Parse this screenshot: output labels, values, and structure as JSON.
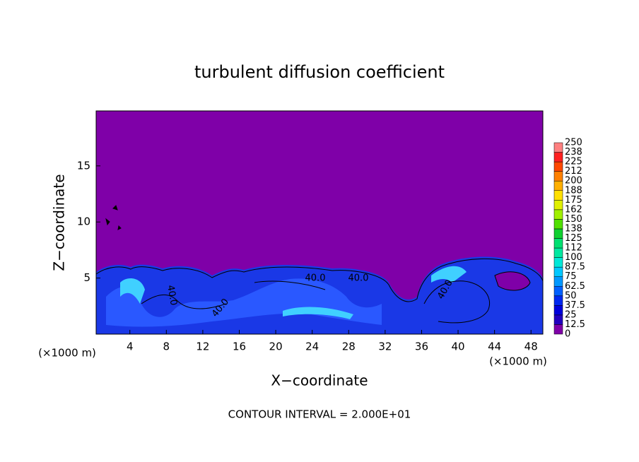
{
  "chart_data": {
    "type": "contour",
    "title": "turbulent diffusion coefficient",
    "xlabel": "X−coordinate",
    "ylabel": "Z−coordinate",
    "x_unit_labels": [
      "(×1000 m)",
      "(×1000 m)"
    ],
    "footer": "CONTOUR INTERVAL = 2.000E+01",
    "xlim": [
      0.3,
      49.3
    ],
    "ylim": [
      0,
      19.9
    ],
    "xticks": [
      4,
      8,
      12,
      16,
      20,
      24,
      28,
      32,
      36,
      40,
      44,
      48
    ],
    "yticks": [
      5,
      10,
      15
    ],
    "background_color": "#7f00a8",
    "contour_labels": [
      "40.0",
      "40.0",
      "40.0",
      "40.0",
      "40.0"
    ],
    "colorbar": {
      "levels": [
        0,
        12.5,
        25,
        37.5,
        50,
        62.5,
        75,
        87.5,
        100,
        {
          "value": 112.5,
          "label": "112"
        },
        125,
        {
          "value": 137.5,
          "label": "138"
        },
        150,
        {
          "value": 162.5,
          "label": "162"
        },
        175,
        {
          "value": 187.5,
          "label": "188"
        },
        200,
        {
          "value": 212.5,
          "label": "212"
        },
        225,
        {
          "value": 237.5,
          "label": "238"
        },
        250
      ],
      "colors": [
        "#7f00a8",
        "#2200c0",
        "#0000dc",
        "#0028f0",
        "#0060ff",
        "#0098ff",
        "#00c8ff",
        "#00e8d8",
        "#00e8a0",
        "#00e070",
        "#10d030",
        "#50e000",
        "#a0f000",
        "#e0f000",
        "#ffe000",
        "#ffb000",
        "#ff8000",
        "#ff4800",
        "#ff2020",
        "#ff8080"
      ]
    }
  }
}
